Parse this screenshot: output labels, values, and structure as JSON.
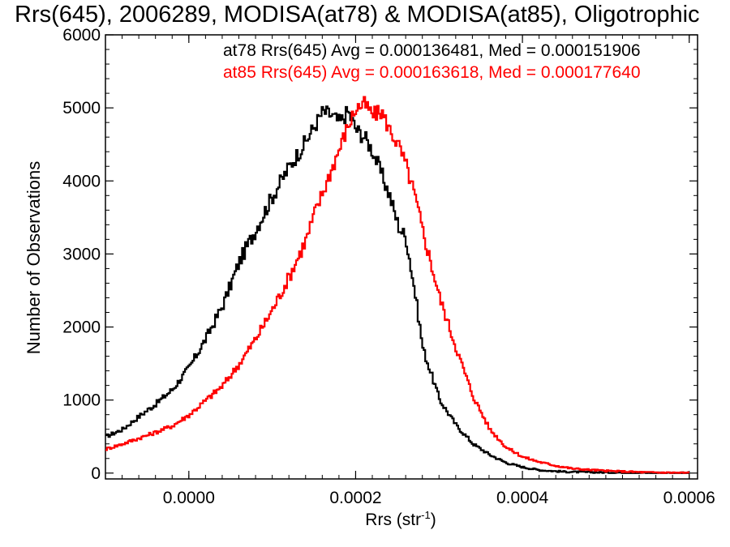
{
  "chart_data": {
    "type": "line",
    "title": "Rrs(645), 2006289, MODISA(at78) & MODISA(at85), Oligotrophic",
    "xlabel": "Rrs (str",
    "xlabel_sup": "-1",
    "xlabel_close": ")",
    "ylabel": "Number of Observations",
    "xlim": [
      -0.0001,
      0.00061
    ],
    "ylim": [
      -80,
      6000
    ],
    "xticks": [
      0.0,
      0.0002,
      0.0004,
      0.0006
    ],
    "xtick_labels": [
      "0.0000",
      "0.0002",
      "0.0004",
      "0.0006"
    ],
    "yticks": [
      0,
      1000,
      2000,
      3000,
      4000,
      5000,
      6000
    ],
    "ytick_labels": [
      "0",
      "1000",
      "2000",
      "3000",
      "4000",
      "5000",
      "6000"
    ],
    "legend_placement": "top-right",
    "series": [
      {
        "name": "at78 Rrs(645) Avg = 0.000136481, Med = 0.000151906",
        "color": "#000000",
        "x": [
          -0.0001,
          -8e-05,
          -6e-05,
          -4e-05,
          -2e-05,
          0.0,
          2e-05,
          4e-05,
          6e-05,
          8e-05,
          0.0001,
          0.00012,
          0.00014,
          0.00015,
          0.00016,
          0.00017,
          0.00018,
          0.00019,
          0.0002,
          0.00021,
          0.00022,
          0.00023,
          0.00024,
          0.00025,
          0.00026,
          0.00027,
          0.00028,
          0.0003,
          0.00032,
          0.00034,
          0.00036,
          0.00038,
          0.0004,
          0.00042,
          0.00045,
          0.0005,
          0.00055,
          0.0006
        ],
        "y": [
          500,
          600,
          780,
          950,
          1150,
          1450,
          1850,
          2300,
          2900,
          3350,
          3800,
          4200,
          4550,
          4750,
          4950,
          4900,
          4800,
          4950,
          4700,
          4600,
          4400,
          4100,
          3800,
          3400,
          3200,
          2500,
          1700,
          1000,
          650,
          400,
          250,
          140,
          80,
          40,
          18,
          8,
          3,
          1
        ]
      },
      {
        "name": "at85 Rrs(645) Avg = 0.000163618, Med = 0.000177640",
        "color": "#ff0000",
        "x": [
          -0.0001,
          -8e-05,
          -6e-05,
          -4e-05,
          -2e-05,
          0.0,
          2e-05,
          4e-05,
          6e-05,
          8e-05,
          0.0001,
          0.00012,
          0.00014,
          0.00015,
          0.00016,
          0.00017,
          0.00018,
          0.00019,
          0.0002,
          0.00021,
          0.00022,
          0.00023,
          0.00024,
          0.00025,
          0.00026,
          0.00027,
          0.00028,
          0.0003,
          0.00032,
          0.00034,
          0.00036,
          0.00038,
          0.0004,
          0.00042,
          0.00044,
          0.00046,
          0.0005,
          0.00055,
          0.0006
        ],
        "y": [
          330,
          400,
          480,
          560,
          650,
          800,
          1000,
          1200,
          1500,
          1850,
          2250,
          2700,
          3200,
          3550,
          3850,
          4150,
          4450,
          4750,
          5000,
          5050,
          4900,
          4950,
          4700,
          4500,
          4200,
          3800,
          3300,
          2400,
          1700,
          1050,
          600,
          350,
          220,
          150,
          100,
          60,
          30,
          10,
          3
        ]
      }
    ]
  }
}
